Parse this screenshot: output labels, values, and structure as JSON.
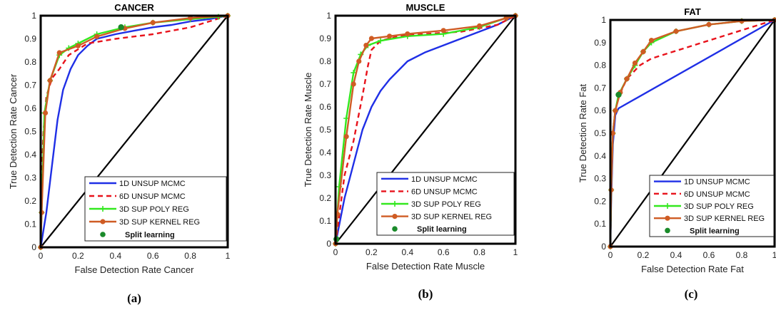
{
  "colors": {
    "unsup_1d": "#1f2fe6",
    "unsup_6d": "#e8121b",
    "sup_poly": "#33e81f",
    "sup_kernel": "#cf5c24",
    "split": "#1a8a2a",
    "diagonal": "#000000"
  },
  "chart_data": [
    {
      "type": "line",
      "title": "CANCER",
      "caption": "(a)",
      "xlabel": "False Detection Rate Cancer",
      "ylabel": "True Detection Rate Cancer",
      "xlim": [
        0,
        1
      ],
      "ylim": [
        0,
        1
      ],
      "xticks": [
        "0",
        "0.2",
        "0.4",
        "0.6",
        "0.8",
        "1"
      ],
      "yticks": [
        "0",
        "0.1",
        "0.2",
        "0.3",
        "0.4",
        "0.5",
        "0.6",
        "0.7",
        "0.8",
        "0.9",
        "1"
      ],
      "legend": [
        "1D UNSUP MCMC",
        "6D UNSUP MCMC",
        "3D SUP POLY REG",
        "3D SUP KERNEL REG",
        "Split learning"
      ],
      "series": [
        {
          "name": "1D UNSUP MCMC",
          "style": "solid",
          "points": [
            [
              0,
              0
            ],
            [
              0.03,
              0.15
            ],
            [
              0.06,
              0.35
            ],
            [
              0.09,
              0.55
            ],
            [
              0.12,
              0.68
            ],
            [
              0.16,
              0.77
            ],
            [
              0.2,
              0.83
            ],
            [
              0.25,
              0.87
            ],
            [
              0.3,
              0.9
            ],
            [
              0.4,
              0.92
            ],
            [
              0.5,
              0.935
            ],
            [
              0.6,
              0.95
            ],
            [
              0.7,
              0.96
            ],
            [
              0.8,
              0.975
            ],
            [
              0.9,
              0.985
            ],
            [
              1,
              1
            ]
          ]
        },
        {
          "name": "6D UNSUP MCMC",
          "style": "dashed",
          "points": [
            [
              0,
              0
            ],
            [
              0.005,
              0.3
            ],
            [
              0.015,
              0.5
            ],
            [
              0.03,
              0.65
            ],
            [
              0.06,
              0.73
            ],
            [
              0.1,
              0.77
            ],
            [
              0.15,
              0.83
            ],
            [
              0.25,
              0.88
            ],
            [
              0.4,
              0.9
            ],
            [
              0.6,
              0.92
            ],
            [
              0.8,
              0.95
            ],
            [
              1,
              1
            ]
          ]
        },
        {
          "name": "3D SUP POLY REG",
          "style": "solid",
          "points": [
            [
              0,
              0
            ],
            [
              0.005,
              0.15
            ],
            [
              0.02,
              0.58
            ],
            [
              0.05,
              0.72
            ],
            [
              0.1,
              0.83
            ],
            [
              0.15,
              0.86
            ],
            [
              0.2,
              0.88
            ],
            [
              0.3,
              0.92
            ],
            [
              0.45,
              0.95
            ],
            [
              0.6,
              0.97
            ],
            [
              0.8,
              0.985
            ],
            [
              0.95,
              0.995
            ],
            [
              1,
              1
            ]
          ]
        },
        {
          "name": "3D SUP KERNEL REG",
          "style": "solid",
          "points": [
            [
              0,
              0
            ],
            [
              0.005,
              0.15
            ],
            [
              0.025,
              0.58
            ],
            [
              0.05,
              0.72
            ],
            [
              0.1,
              0.84
            ],
            [
              0.2,
              0.87
            ],
            [
              0.3,
              0.91
            ],
            [
              0.45,
              0.945
            ],
            [
              0.6,
              0.97
            ],
            [
              0.8,
              0.99
            ],
            [
              1,
              1
            ]
          ]
        }
      ],
      "split_learning": [
        0.43,
        0.95
      ]
    },
    {
      "type": "line",
      "title": "MUSCLE",
      "caption": "(b)",
      "xlabel": "False Detection Rate Muscle",
      "ylabel": "True Detection Rate Muscle",
      "xlim": [
        0,
        1
      ],
      "ylim": [
        0,
        1
      ],
      "xticks": [
        "0",
        "0.2",
        "0.4",
        "0.6",
        "0.8",
        "1"
      ],
      "yticks": [
        "0",
        "0.1",
        "0.2",
        "0.3",
        "0.4",
        "0.5",
        "0.6",
        "0.7",
        "0.8",
        "0.9",
        "1"
      ],
      "legend": [
        "1D UNSUP MCMC",
        "6D UNSUP MCMC",
        "3D SUP POLY REG",
        "3D SUP KERNEL REG",
        "Split learning"
      ],
      "series": [
        {
          "name": "1D UNSUP MCMC",
          "style": "solid",
          "points": [
            [
              0,
              0
            ],
            [
              0.05,
              0.2
            ],
            [
              0.1,
              0.35
            ],
            [
              0.15,
              0.5
            ],
            [
              0.2,
              0.6
            ],
            [
              0.25,
              0.67
            ],
            [
              0.3,
              0.72
            ],
            [
              0.4,
              0.8
            ],
            [
              0.5,
              0.84
            ],
            [
              0.6,
              0.87
            ],
            [
              0.7,
              0.9
            ],
            [
              0.8,
              0.93
            ],
            [
              0.9,
              0.96
            ],
            [
              1,
              1
            ]
          ]
        },
        {
          "name": "6D UNSUP MCMC",
          "style": "dashed",
          "points": [
            [
              0,
              0
            ],
            [
              0.05,
              0.3
            ],
            [
              0.1,
              0.45
            ],
            [
              0.15,
              0.65
            ],
            [
              0.18,
              0.78
            ],
            [
              0.2,
              0.85
            ],
            [
              0.25,
              0.89
            ],
            [
              0.35,
              0.91
            ],
            [
              0.5,
              0.92
            ],
            [
              0.7,
              0.93
            ],
            [
              0.9,
              0.96
            ],
            [
              1,
              1
            ]
          ]
        },
        {
          "name": "3D SUP POLY REG",
          "style": "solid",
          "points": [
            [
              0,
              0
            ],
            [
              0.02,
              0.25
            ],
            [
              0.06,
              0.55
            ],
            [
              0.1,
              0.75
            ],
            [
              0.14,
              0.83
            ],
            [
              0.18,
              0.87
            ],
            [
              0.25,
              0.89
            ],
            [
              0.4,
              0.91
            ],
            [
              0.6,
              0.92
            ],
            [
              0.8,
              0.95
            ],
            [
              0.95,
              0.99
            ],
            [
              1,
              1
            ]
          ]
        },
        {
          "name": "3D SUP KERNEL REG",
          "style": "solid",
          "points": [
            [
              0,
              0
            ],
            [
              0.01,
              0.13
            ],
            [
              0.06,
              0.47
            ],
            [
              0.1,
              0.7
            ],
            [
              0.13,
              0.8
            ],
            [
              0.17,
              0.87
            ],
            [
              0.2,
              0.9
            ],
            [
              0.3,
              0.91
            ],
            [
              0.4,
              0.92
            ],
            [
              0.6,
              0.935
            ],
            [
              0.8,
              0.955
            ],
            [
              0.95,
              0.99
            ],
            [
              1,
              1
            ]
          ]
        }
      ],
      "split_learning": [
        0.005,
        0.02
      ]
    },
    {
      "type": "line",
      "title": "FAT",
      "caption": "(c)",
      "xlabel": "False Detection Rate Fat",
      "ylabel": "True Detection Rate Fat",
      "xlim": [
        0,
        1
      ],
      "ylim": [
        0,
        1
      ],
      "xticks": [
        "0",
        "0.2",
        "0.4",
        "0.6",
        "0.8",
        "1"
      ],
      "yticks": [
        "0",
        "0.1",
        "0.2",
        "0.3",
        "0.4",
        "0.5",
        "0.6",
        "0.7",
        "0.8",
        "0.9",
        "1"
      ],
      "legend": [
        "1D UNSUP MCMC",
        "6D UNSUP MCMC",
        "3D SUP POLY REG",
        "3D SUP KERNEL REG",
        "Split learning"
      ],
      "series": [
        {
          "name": "1D UNSUP MCMC",
          "style": "solid",
          "points": [
            [
              0,
              0
            ],
            [
              0.005,
              0.2
            ],
            [
              0.015,
              0.45
            ],
            [
              0.03,
              0.58
            ],
            [
              0.05,
              0.61
            ],
            [
              1,
              1
            ]
          ]
        },
        {
          "name": "6D UNSUP MCMC",
          "style": "dashed",
          "points": [
            [
              0,
              0
            ],
            [
              0.005,
              0.25
            ],
            [
              0.015,
              0.5
            ],
            [
              0.03,
              0.6
            ],
            [
              0.05,
              0.66
            ],
            [
              0.1,
              0.74
            ],
            [
              0.18,
              0.8
            ],
            [
              0.25,
              0.83
            ],
            [
              1,
              1
            ]
          ]
        },
        {
          "name": "3D SUP POLY REG",
          "style": "solid",
          "points": [
            [
              0,
              0
            ],
            [
              0.005,
              0.25
            ],
            [
              0.015,
              0.5
            ],
            [
              0.03,
              0.6
            ],
            [
              0.05,
              0.67
            ],
            [
              0.1,
              0.74
            ],
            [
              0.15,
              0.8
            ],
            [
              0.2,
              0.86
            ],
            [
              0.25,
              0.9
            ],
            [
              0.4,
              0.95
            ],
            [
              0.6,
              0.98
            ],
            [
              0.8,
              0.995
            ],
            [
              1,
              1
            ]
          ]
        },
        {
          "name": "3D SUP KERNEL REG",
          "style": "solid",
          "points": [
            [
              0,
              0
            ],
            [
              0.005,
              0.25
            ],
            [
              0.015,
              0.5
            ],
            [
              0.03,
              0.6
            ],
            [
              0.06,
              0.68
            ],
            [
              0.1,
              0.74
            ],
            [
              0.15,
              0.81
            ],
            [
              0.2,
              0.86
            ],
            [
              0.25,
              0.91
            ],
            [
              0.4,
              0.95
            ],
            [
              0.6,
              0.98
            ],
            [
              0.8,
              0.995
            ],
            [
              1,
              1
            ]
          ]
        }
      ],
      "split_learning": [
        0.05,
        0.67
      ]
    }
  ]
}
